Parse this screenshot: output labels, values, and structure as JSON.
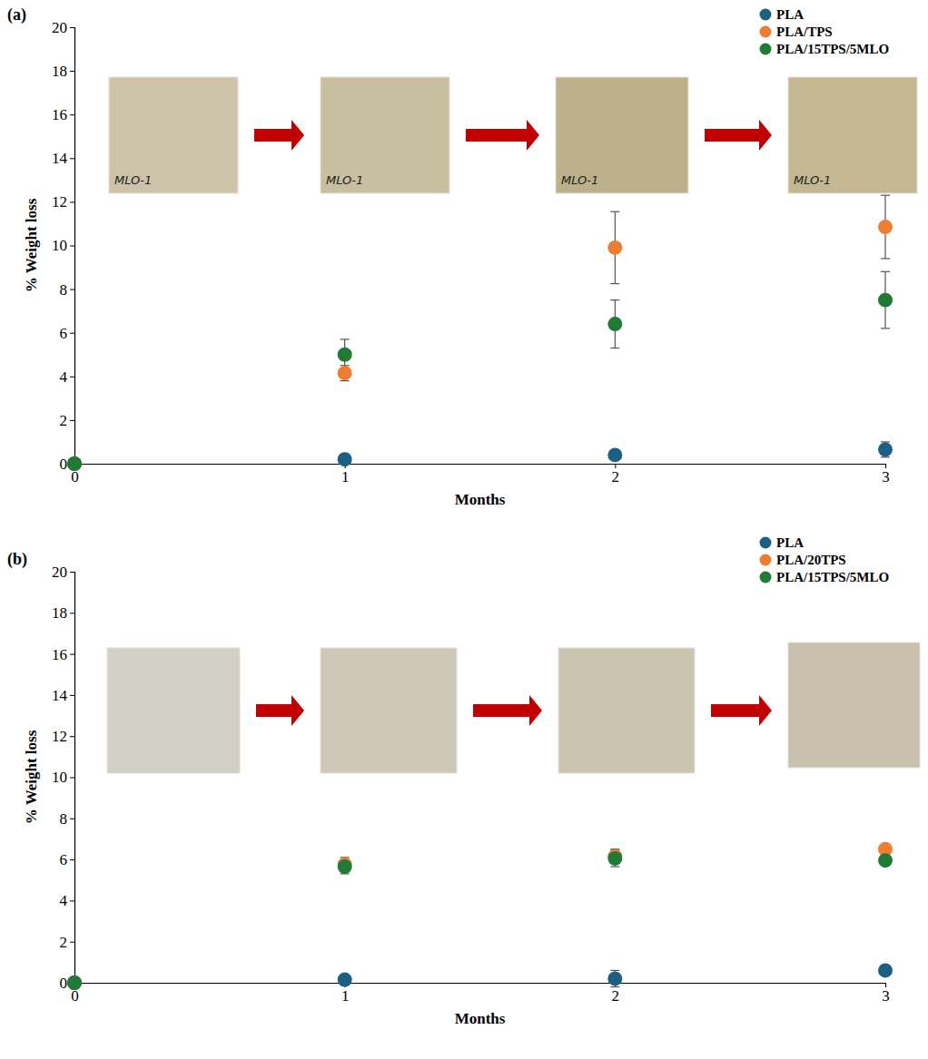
{
  "chart_data": [
    {
      "type": "scatter",
      "title": "(a)",
      "x_label": "Months",
      "y_label": "% Weight loss",
      "x": [
        0,
        1,
        2,
        3
      ],
      "xlim": [
        0,
        3
      ],
      "xticks": [
        0,
        1,
        2,
        3
      ],
      "ylim": [
        0,
        20
      ],
      "yticks": [
        0,
        2,
        4,
        6,
        8,
        10,
        12,
        14,
        16,
        18,
        20
      ],
      "grid": false,
      "legend": "top-right",
      "marker": "circle",
      "annotations": [
        "MLO-1",
        "MLO-1",
        "MLO-1",
        "MLO-1"
      ],
      "series": [
        {
          "name": "PLA",
          "color": "#1b5f82",
          "values": [
            0,
            0.2,
            0.4,
            0.65
          ],
          "errors": [
            0,
            0.05,
            0.1,
            0.35
          ]
        },
        {
          "name": "PLA/TPS",
          "color": "#ed7d31",
          "values": [
            0,
            4.15,
            9.9,
            10.85
          ],
          "errors": [
            0,
            0.35,
            1.65,
            1.45
          ]
        },
        {
          "name": "PLA/15TPS/5MLO",
          "color": "#1e7a35",
          "values": [
            0,
            5.0,
            6.4,
            7.5
          ],
          "errors": [
            0,
            0.7,
            1.1,
            1.3
          ]
        }
      ]
    },
    {
      "type": "scatter",
      "title": "(b)",
      "x_label": "Months",
      "y_label": "% Weight loss",
      "x": [
        0,
        1,
        2,
        3
      ],
      "xlim": [
        0,
        3
      ],
      "xticks": [
        0,
        1,
        2,
        3
      ],
      "ylim": [
        0,
        20
      ],
      "yticks": [
        0,
        2,
        4,
        6,
        8,
        10,
        12,
        14,
        16,
        18,
        20
      ],
      "grid": false,
      "legend": "top-right",
      "marker": "circle",
      "series": [
        {
          "name": "PLA",
          "color": "#1b5f82",
          "values": [
            0,
            0.15,
            0.2,
            0.6
          ],
          "errors": [
            0,
            0.05,
            0.4,
            0.1
          ]
        },
        {
          "name": "PLA/20TPS",
          "color": "#ed7d31",
          "values": [
            0,
            5.75,
            6.15,
            6.5
          ],
          "errors": [
            0,
            0.35,
            0.35,
            0.1
          ]
        },
        {
          "name": "PLA/15TPS/5MLO",
          "color": "#1e7a35",
          "values": [
            0,
            5.65,
            6.05,
            5.95
          ],
          "errors": [
            0,
            0.35,
            0.4,
            0.1
          ]
        }
      ]
    }
  ]
}
